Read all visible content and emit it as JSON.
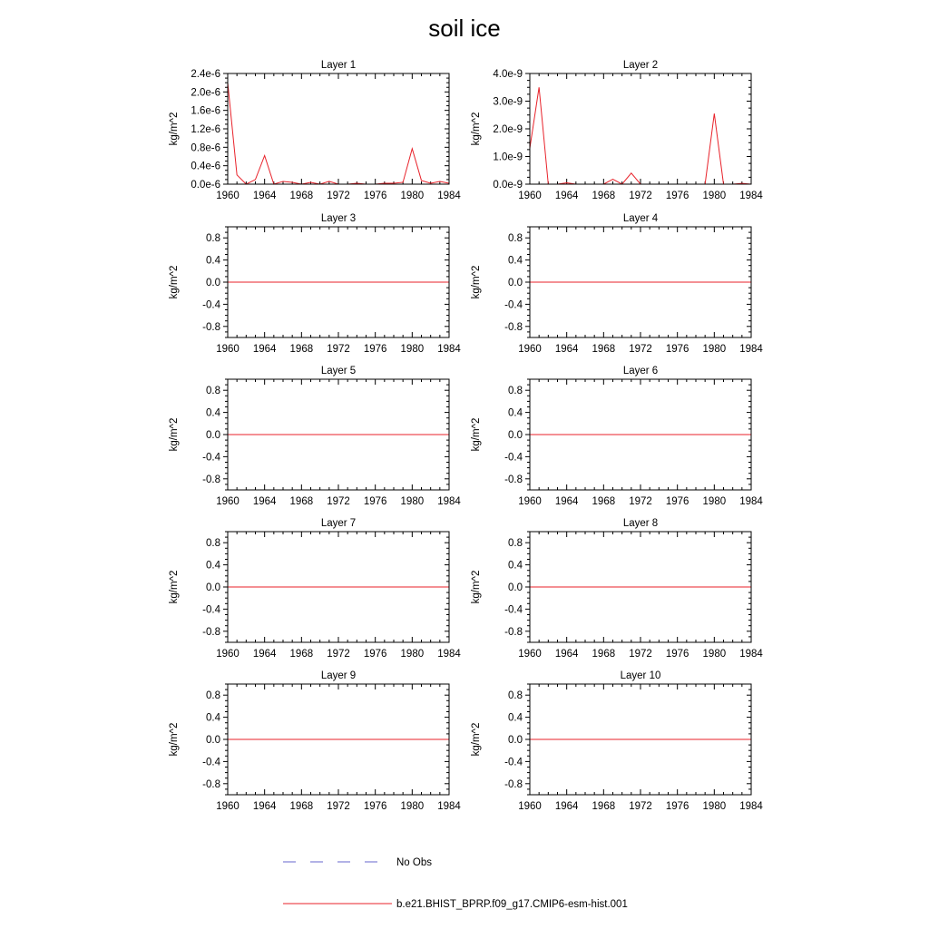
{
  "title": "soil ice",
  "legend": {
    "placement": "bottom",
    "entries": [
      {
        "label": "No Obs",
        "color": "#6666cc",
        "style": "dashed"
      },
      {
        "label": "b.e21.BHIST_BPRP.f09_g17.CMIP6-esm-hist.001",
        "color": "#e8222a",
        "style": "solid"
      }
    ]
  },
  "chart_data": [
    {
      "type": "line",
      "title": "Layer 1",
      "ylabel": "kg/m^2",
      "xlim": [
        1960,
        1984
      ],
      "ylim": [
        0,
        2.4e-06
      ],
      "x_ticks": [
        1960,
        1964,
        1968,
        1972,
        1976,
        1980,
        1984
      ],
      "y_ticks": [
        0,
        4e-07,
        8e-07,
        1.2e-06,
        1.6e-06,
        2e-06,
        2.4e-06
      ],
      "y_tick_labels": [
        "0.0e-6",
        "0.4e-6",
        "0.8e-6",
        "1.2e-6",
        "1.6e-6",
        "2.0e-6",
        "2.4e-6"
      ],
      "series": [
        {
          "name": "b.e21.BHIST_BPRP.f09_g17.CMIP6-esm-hist.001",
          "color": "#e8222a",
          "x": [
            1960,
            1961,
            1962,
            1963,
            1964,
            1965,
            1966,
            1967,
            1968,
            1969,
            1970,
            1971,
            1972,
            1973,
            1974,
            1975,
            1976,
            1977,
            1978,
            1979,
            1980,
            1981,
            1982,
            1983,
            1984
          ],
          "y": [
            2.2e-06,
            2e-07,
            0.0,
            1e-07,
            6.2e-07,
            0.0,
            6e-08,
            4e-08,
            0.0,
            4e-08,
            0.0,
            6e-08,
            0.0,
            0.0,
            2e-08,
            0.0,
            0.0,
            2e-08,
            2e-08,
            4e-08,
            7.7e-07,
            8e-08,
            2e-08,
            6e-08,
            2e-08
          ]
        }
      ]
    },
    {
      "type": "line",
      "title": "Layer 2",
      "ylabel": "kg/m^2",
      "xlim": [
        1960,
        1984
      ],
      "ylim": [
        0,
        4e-09
      ],
      "x_ticks": [
        1960,
        1964,
        1968,
        1972,
        1976,
        1980,
        1984
      ],
      "y_ticks": [
        0,
        1e-09,
        2e-09,
        3e-09,
        4e-09
      ],
      "y_tick_labels": [
        "0.0e-9",
        "1.0e-9",
        "2.0e-9",
        "3.0e-9",
        "4.0e-9"
      ],
      "series": [
        {
          "name": "b.e21.BHIST_BPRP.f09_g17.CMIP6-esm-hist.001",
          "color": "#e8222a",
          "x": [
            1960,
            1961,
            1962,
            1963,
            1964,
            1965,
            1966,
            1967,
            1968,
            1969,
            1970,
            1971,
            1972,
            1973,
            1974,
            1975,
            1976,
            1977,
            1978,
            1979,
            1980,
            1981,
            1982,
            1983,
            1984
          ],
          "y": [
            1.3e-09,
            3.5e-09,
            0.0,
            0.0,
            5e-11,
            0.0,
            0.0,
            0.0,
            0.0,
            1.8e-10,
            0.0,
            4e-10,
            0.0,
            0.0,
            0.0,
            0.0,
            0.0,
            0.0,
            0.0,
            0.0,
            2.55e-09,
            0.0,
            0.0,
            3e-11,
            0.0
          ]
        }
      ]
    },
    {
      "type": "line",
      "title": "Layer 3",
      "ylabel": "kg/m^2",
      "xlim": [
        1960,
        1984
      ],
      "ylim": [
        -1,
        1
      ],
      "x_ticks": [
        1960,
        1964,
        1968,
        1972,
        1976,
        1980,
        1984
      ],
      "y_ticks": [
        -0.8,
        -0.4,
        0.0,
        0.4,
        0.8
      ],
      "y_tick_labels": [
        "-0.8",
        "-0.4",
        "0.0",
        "0.4",
        "0.8"
      ],
      "series": [
        {
          "name": "b.e21.BHIST_BPRP.f09_g17.CMIP6-esm-hist.001",
          "color": "#e8222a",
          "x": [
            1960,
            1984
          ],
          "y": [
            0,
            0
          ]
        }
      ]
    },
    {
      "type": "line",
      "title": "Layer 4",
      "ylabel": "kg/m^2",
      "xlim": [
        1960,
        1984
      ],
      "ylim": [
        -1,
        1
      ],
      "x_ticks": [
        1960,
        1964,
        1968,
        1972,
        1976,
        1980,
        1984
      ],
      "y_ticks": [
        -0.8,
        -0.4,
        0.0,
        0.4,
        0.8
      ],
      "y_tick_labels": [
        "-0.8",
        "-0.4",
        "0.0",
        "0.4",
        "0.8"
      ],
      "series": [
        {
          "name": "b.e21.BHIST_BPRP.f09_g17.CMIP6-esm-hist.001",
          "color": "#e8222a",
          "x": [
            1960,
            1984
          ],
          "y": [
            0,
            0
          ]
        }
      ]
    },
    {
      "type": "line",
      "title": "Layer 5",
      "ylabel": "kg/m^2",
      "xlim": [
        1960,
        1984
      ],
      "ylim": [
        -1,
        1
      ],
      "x_ticks": [
        1960,
        1964,
        1968,
        1972,
        1976,
        1980,
        1984
      ],
      "y_ticks": [
        -0.8,
        -0.4,
        0.0,
        0.4,
        0.8
      ],
      "y_tick_labels": [
        "-0.8",
        "-0.4",
        "0.0",
        "0.4",
        "0.8"
      ],
      "series": [
        {
          "name": "b.e21.BHIST_BPRP.f09_g17.CMIP6-esm-hist.001",
          "color": "#e8222a",
          "x": [
            1960,
            1984
          ],
          "y": [
            0,
            0
          ]
        }
      ]
    },
    {
      "type": "line",
      "title": "Layer 6",
      "ylabel": "kg/m^2",
      "xlim": [
        1960,
        1984
      ],
      "ylim": [
        -1,
        1
      ],
      "x_ticks": [
        1960,
        1964,
        1968,
        1972,
        1976,
        1980,
        1984
      ],
      "y_ticks": [
        -0.8,
        -0.4,
        0.0,
        0.4,
        0.8
      ],
      "y_tick_labels": [
        "-0.8",
        "-0.4",
        "0.0",
        "0.4",
        "0.8"
      ],
      "series": [
        {
          "name": "b.e21.BHIST_BPRP.f09_g17.CMIP6-esm-hist.001",
          "color": "#e8222a",
          "x": [
            1960,
            1984
          ],
          "y": [
            0,
            0
          ]
        }
      ]
    },
    {
      "type": "line",
      "title": "Layer 7",
      "ylabel": "kg/m^2",
      "xlim": [
        1960,
        1984
      ],
      "ylim": [
        -1,
        1
      ],
      "x_ticks": [
        1960,
        1964,
        1968,
        1972,
        1976,
        1980,
        1984
      ],
      "y_ticks": [
        -0.8,
        -0.4,
        0.0,
        0.4,
        0.8
      ],
      "y_tick_labels": [
        "-0.8",
        "-0.4",
        "0.0",
        "0.4",
        "0.8"
      ],
      "series": [
        {
          "name": "b.e21.BHIST_BPRP.f09_g17.CMIP6-esm-hist.001",
          "color": "#e8222a",
          "x": [
            1960,
            1984
          ],
          "y": [
            0,
            0
          ]
        }
      ]
    },
    {
      "type": "line",
      "title": "Layer 8",
      "ylabel": "kg/m^2",
      "xlim": [
        1960,
        1984
      ],
      "ylim": [
        -1,
        1
      ],
      "x_ticks": [
        1960,
        1964,
        1968,
        1972,
        1976,
        1980,
        1984
      ],
      "y_ticks": [
        -0.8,
        -0.4,
        0.0,
        0.4,
        0.8
      ],
      "y_tick_labels": [
        "-0.8",
        "-0.4",
        "0.0",
        "0.4",
        "0.8"
      ],
      "series": [
        {
          "name": "b.e21.BHIST_BPRP.f09_g17.CMIP6-esm-hist.001",
          "color": "#e8222a",
          "x": [
            1960,
            1984
          ],
          "y": [
            0,
            0
          ]
        }
      ]
    },
    {
      "type": "line",
      "title": "Layer 9",
      "ylabel": "kg/m^2",
      "xlim": [
        1960,
        1984
      ],
      "ylim": [
        -1,
        1
      ],
      "x_ticks": [
        1960,
        1964,
        1968,
        1972,
        1976,
        1980,
        1984
      ],
      "y_ticks": [
        -0.8,
        -0.4,
        0.0,
        0.4,
        0.8
      ],
      "y_tick_labels": [
        "-0.8",
        "-0.4",
        "0.0",
        "0.4",
        "0.8"
      ],
      "series": [
        {
          "name": "b.e21.BHIST_BPRP.f09_g17.CMIP6-esm-hist.001",
          "color": "#e8222a",
          "x": [
            1960,
            1984
          ],
          "y": [
            0,
            0
          ]
        }
      ]
    },
    {
      "type": "line",
      "title": "Layer 10",
      "ylabel": "kg/m^2",
      "xlim": [
        1960,
        1984
      ],
      "ylim": [
        -1,
        1
      ],
      "x_ticks": [
        1960,
        1964,
        1968,
        1972,
        1976,
        1980,
        1984
      ],
      "y_ticks": [
        -0.8,
        -0.4,
        0.0,
        0.4,
        0.8
      ],
      "y_tick_labels": [
        "-0.8",
        "-0.4",
        "0.0",
        "0.4",
        "0.8"
      ],
      "series": [
        {
          "name": "b.e21.BHIST_BPRP.f09_g17.CMIP6-esm-hist.001",
          "color": "#e8222a",
          "x": [
            1960,
            1984
          ],
          "y": [
            0,
            0
          ]
        }
      ]
    }
  ]
}
